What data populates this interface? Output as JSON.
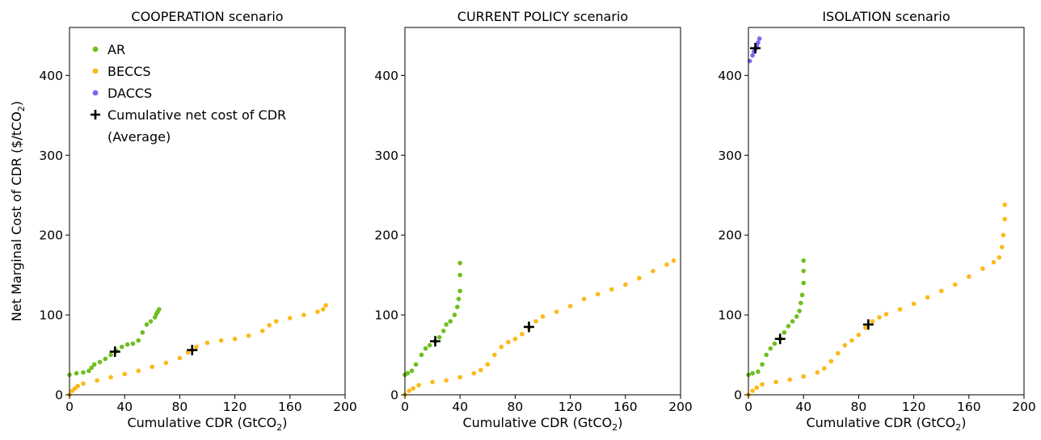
{
  "figure": {
    "colors": {
      "AR": "#6fbf1f",
      "BECCS": "#fcb91a",
      "DACCS": "#7b68ee",
      "average_marker": "#000000"
    }
  },
  "chart_data": [
    {
      "type": "scatter",
      "title": "COOPERATION scenario",
      "xlabel": "Cumulative CDR (GtCO2)",
      "xlabel_main": "Cumulative CDR (GtCO",
      "xlabel_sub": "2",
      "xlabel_close": ")",
      "ylabel": "Net Marginal Cost of CDR ($/tCO2)",
      "ylabel_main": "Net Marginal Cost of CDR ($/tCO",
      "ylabel_sub": "2",
      "ylabel_close": ")",
      "xlim": [
        0,
        200
      ],
      "ylim": [
        0,
        460
      ],
      "xticks": [
        0,
        40,
        80,
        120,
        160,
        200
      ],
      "yticks": [
        0,
        100,
        200,
        300,
        400
      ],
      "grid": false,
      "legend_placement": "top-left",
      "legend": [
        {
          "label": "AR",
          "marker": "dot",
          "color_key": "AR"
        },
        {
          "label": "BECCS",
          "marker": "dot",
          "color_key": "BECCS"
        },
        {
          "label": "DACCS",
          "marker": "dot",
          "color_key": "DACCS"
        },
        {
          "label": "Cumulative net cost of CDR",
          "label2": "(Average)",
          "marker": "plus",
          "color_key": "average_marker"
        }
      ],
      "series": [
        {
          "name": "AR",
          "color_key": "AR",
          "points": [
            [
              0,
              25
            ],
            [
              5,
              27
            ],
            [
              10,
              28
            ],
            [
              14,
              30
            ],
            [
              16,
              34
            ],
            [
              18,
              38
            ],
            [
              22,
              41
            ],
            [
              26,
              45
            ],
            [
              30,
              50
            ],
            [
              34,
              55
            ],
            [
              38,
              60
            ],
            [
              42,
              63
            ],
            [
              46,
              64
            ],
            [
              50,
              68
            ],
            [
              53,
              78
            ],
            [
              56,
              88
            ],
            [
              59,
              92
            ],
            [
              62,
              97
            ],
            [
              63,
              101
            ],
            [
              64,
              104
            ],
            [
              65,
              107
            ]
          ]
        },
        {
          "name": "BECCS",
          "color_key": "BECCS",
          "points": [
            [
              0,
              0
            ],
            [
              2,
              5
            ],
            [
              4,
              8
            ],
            [
              6,
              11
            ],
            [
              10,
              14
            ],
            [
              20,
              18
            ],
            [
              30,
              22
            ],
            [
              40,
              26
            ],
            [
              50,
              30
            ],
            [
              60,
              35
            ],
            [
              70,
              40
            ],
            [
              80,
              46
            ],
            [
              86,
              53
            ],
            [
              89,
              56
            ],
            [
              92,
              60
            ],
            [
              100,
              65
            ],
            [
              110,
              68
            ],
            [
              120,
              70
            ],
            [
              130,
              74
            ],
            [
              140,
              80
            ],
            [
              145,
              87
            ],
            [
              150,
              92
            ],
            [
              160,
              96
            ],
            [
              170,
              100
            ],
            [
              180,
              104
            ],
            [
              184,
              107
            ],
            [
              186,
              112
            ]
          ]
        },
        {
          "name": "DACCS",
          "color_key": "DACCS",
          "points": []
        },
        {
          "name": "Cumulative net cost of CDR (Average)",
          "color_key": "average_marker",
          "marker": "plus",
          "points": [
            [
              33,
              54
            ],
            [
              89,
              56
            ]
          ]
        }
      ]
    },
    {
      "type": "scatter",
      "title": "CURRENT POLICY scenario",
      "xlabel": "Cumulative CDR (GtCO2)",
      "xlabel_main": "Cumulative CDR (GtCO",
      "xlabel_sub": "2",
      "xlabel_close": ")",
      "ylabel": "",
      "ylabel_main": "",
      "ylabel_sub": "",
      "ylabel_close": "",
      "xlim": [
        0,
        200
      ],
      "ylim": [
        0,
        460
      ],
      "xticks": [
        0,
        40,
        80,
        120,
        160,
        200
      ],
      "yticks": [
        0,
        100,
        200,
        300,
        400
      ],
      "grid": false,
      "legend": [],
      "series": [
        {
          "name": "AR",
          "color_key": "AR",
          "points": [
            [
              0,
              25
            ],
            [
              2,
              27
            ],
            [
              5,
              30
            ],
            [
              8,
              38
            ],
            [
              12,
              50
            ],
            [
              15,
              58
            ],
            [
              18,
              62
            ],
            [
              22,
              67
            ],
            [
              25,
              72
            ],
            [
              28,
              80
            ],
            [
              30,
              88
            ],
            [
              33,
              92
            ],
            [
              36,
              100
            ],
            [
              38,
              110
            ],
            [
              39,
              120
            ],
            [
              40,
              130
            ],
            [
              40,
              150
            ],
            [
              40,
              165
            ]
          ]
        },
        {
          "name": "BECCS",
          "color_key": "BECCS",
          "points": [
            [
              0,
              0
            ],
            [
              3,
              5
            ],
            [
              6,
              8
            ],
            [
              10,
              12
            ],
            [
              20,
              16
            ],
            [
              30,
              18
            ],
            [
              40,
              22
            ],
            [
              50,
              27
            ],
            [
              55,
              31
            ],
            [
              60,
              38
            ],
            [
              65,
              50
            ],
            [
              70,
              60
            ],
            [
              75,
              66
            ],
            [
              80,
              70
            ],
            [
              85,
              76
            ],
            [
              90,
              84
            ],
            [
              95,
              92
            ],
            [
              100,
              98
            ],
            [
              110,
              104
            ],
            [
              120,
              111
            ],
            [
              130,
              120
            ],
            [
              140,
              126
            ],
            [
              150,
              132
            ],
            [
              160,
              138
            ],
            [
              170,
              146
            ],
            [
              180,
              155
            ],
            [
              190,
              163
            ],
            [
              195,
              168
            ]
          ]
        },
        {
          "name": "DACCS",
          "color_key": "DACCS",
          "points": []
        },
        {
          "name": "Cumulative net cost of CDR (Average)",
          "color_key": "average_marker",
          "marker": "plus",
          "points": [
            [
              22,
              67
            ],
            [
              90,
              85
            ]
          ]
        }
      ]
    },
    {
      "type": "scatter",
      "title": "ISOLATION scenario",
      "xlabel": "Cumulative CDR (GtCO2)",
      "xlabel_main": "Cumulative CDR (GtCO",
      "xlabel_sub": "2",
      "xlabel_close": ")",
      "ylabel": "",
      "ylabel_main": "",
      "ylabel_sub": "",
      "ylabel_close": "",
      "xlim": [
        0,
        200
      ],
      "ylim": [
        0,
        460
      ],
      "xticks": [
        0,
        40,
        80,
        120,
        160,
        200
      ],
      "yticks": [
        0,
        100,
        200,
        300,
        400
      ],
      "grid": false,
      "legend": [],
      "series": [
        {
          "name": "AR",
          "color_key": "AR",
          "points": [
            [
              0,
              25
            ],
            [
              3,
              27
            ],
            [
              7,
              29
            ],
            [
              10,
              38
            ],
            [
              13,
              50
            ],
            [
              16,
              58
            ],
            [
              19,
              64
            ],
            [
              23,
              70
            ],
            [
              26,
              78
            ],
            [
              29,
              86
            ],
            [
              32,
              92
            ],
            [
              35,
              98
            ],
            [
              37,
              105
            ],
            [
              38,
              115
            ],
            [
              39,
              125
            ],
            [
              40,
              140
            ],
            [
              40,
              155
            ],
            [
              40,
              168
            ]
          ]
        },
        {
          "name": "BECCS",
          "color_key": "BECCS",
          "points": [
            [
              0,
              0
            ],
            [
              3,
              5
            ],
            [
              6,
              9
            ],
            [
              10,
              13
            ],
            [
              20,
              16
            ],
            [
              30,
              19
            ],
            [
              40,
              23
            ],
            [
              50,
              28
            ],
            [
              55,
              33
            ],
            [
              60,
              42
            ],
            [
              65,
              52
            ],
            [
              70,
              62
            ],
            [
              75,
              68
            ],
            [
              80,
              75
            ],
            [
              85,
              84
            ],
            [
              90,
              92
            ],
            [
              95,
              97
            ],
            [
              100,
              101
            ],
            [
              110,
              107
            ],
            [
              120,
              114
            ],
            [
              130,
              122
            ],
            [
              140,
              130
            ],
            [
              150,
              138
            ],
            [
              160,
              148
            ],
            [
              170,
              158
            ],
            [
              178,
              166
            ],
            [
              182,
              172
            ],
            [
              184,
              185
            ],
            [
              185,
              200
            ],
            [
              186,
              220
            ],
            [
              186,
              238
            ]
          ]
        },
        {
          "name": "DACCS",
          "color_key": "DACCS",
          "points": [
            [
              1,
              418
            ],
            [
              3,
              425
            ],
            [
              4,
              430
            ],
            [
              5,
              433
            ],
            [
              6,
              437
            ],
            [
              7,
              441
            ],
            [
              8,
              446
            ]
          ]
        },
        {
          "name": "Cumulative net cost of CDR (Average)",
          "color_key": "average_marker",
          "marker": "plus",
          "points": [
            [
              5,
              434
            ],
            [
              23,
              70
            ],
            [
              87,
              88
            ]
          ]
        }
      ]
    }
  ]
}
